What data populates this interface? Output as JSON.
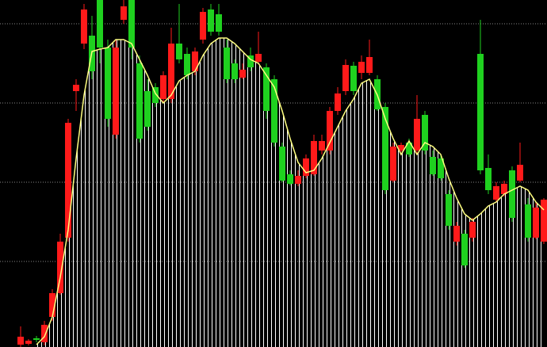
{
  "chart_data": {
    "type": "candlestick",
    "ylim": [
      0,
      438
    ],
    "yticks": [
      108,
      208,
      308,
      408
    ],
    "grid": true,
    "up_color": "#ff1a1a",
    "down_color": "#1fd11f",
    "open": [
      3,
      4,
      11,
      6,
      38,
      68,
      138,
      323,
      383,
      393,
      438,
      378,
      268,
      413,
      438,
      358,
      323,
      328,
      313,
      313,
      383,
      370,
      348,
      388,
      426,
      420,
      378,
      358,
      340,
      368,
      360,
      353,
      338,
      253,
      218,
      206,
      216,
      218,
      248,
      248,
      298,
      323,
      355,
      346,
      346,
      338,
      303,
      210,
      248,
      258,
      248,
      293,
      240,
      238,
      193,
      133,
      143,
      138,
      370,
      226,
      186,
      193,
      223,
      210,
      180,
      138,
      133
    ],
    "high": [
      26,
      10,
      14,
      33,
      73,
      143,
      288,
      338,
      433,
      418,
      438,
      388,
      388,
      438,
      438,
      368,
      338,
      333,
      348,
      403,
      433,
      378,
      378,
      428,
      433,
      433,
      388,
      363,
      358,
      378,
      398,
      358,
      343,
      258,
      223,
      223,
      243,
      268,
      268,
      303,
      328,
      363,
      360,
      368,
      388,
      343,
      308,
      258,
      258,
      263,
      318,
      298,
      248,
      243,
      198,
      158,
      148,
      163,
      413,
      243,
      208,
      210,
      228,
      258,
      188,
      183,
      188
    ],
    "low": [
      0,
      2,
      6,
      2,
      33,
      66,
      133,
      298,
      376,
      338,
      358,
      278,
      263,
      408,
      363,
      258,
      273,
      303,
      308,
      308,
      358,
      338,
      343,
      383,
      393,
      393,
      333,
      333,
      338,
      348,
      358,
      288,
      253,
      208,
      204,
      203,
      213,
      216,
      243,
      243,
      293,
      318,
      318,
      338,
      343,
      298,
      193,
      208,
      246,
      240,
      243,
      243,
      216,
      210,
      148,
      128,
      100,
      133,
      218,
      193,
      183,
      190,
      158,
      208,
      133,
      136,
      130
    ],
    "close": [
      13,
      8,
      9,
      28,
      68,
      133,
      283,
      331,
      426,
      348,
      378,
      288,
      378,
      430,
      378,
      263,
      278,
      308,
      343,
      383,
      363,
      343,
      373,
      423,
      398,
      398,
      338,
      338,
      350,
      353,
      370,
      298,
      258,
      210,
      206,
      216,
      238,
      260,
      260,
      298,
      320,
      356,
      323,
      360,
      366,
      300,
      198,
      253,
      255,
      243,
      288,
      248,
      218,
      213,
      153,
      153,
      103,
      158,
      223,
      198,
      203,
      206,
      163,
      230,
      138,
      176,
      186
    ],
    "ma": {
      "color": "#ffff80",
      "values": [
        null,
        null,
        3,
        13,
        38,
        88,
        148,
        238,
        318,
        373,
        376,
        378,
        388,
        388,
        383,
        363,
        343,
        320,
        308,
        318,
        336,
        343,
        348,
        368,
        383,
        390,
        390,
        383,
        373,
        363,
        358,
        343,
        328,
        298,
        263,
        233,
        220,
        223,
        238,
        258,
        278,
        298,
        313,
        333,
        338,
        318,
        288,
        263,
        243,
        260,
        243,
        258,
        253,
        243,
        213,
        188,
        168,
        160,
        168,
        178,
        183,
        193,
        198,
        203,
        198,
        183,
        173
      ]
    }
  }
}
